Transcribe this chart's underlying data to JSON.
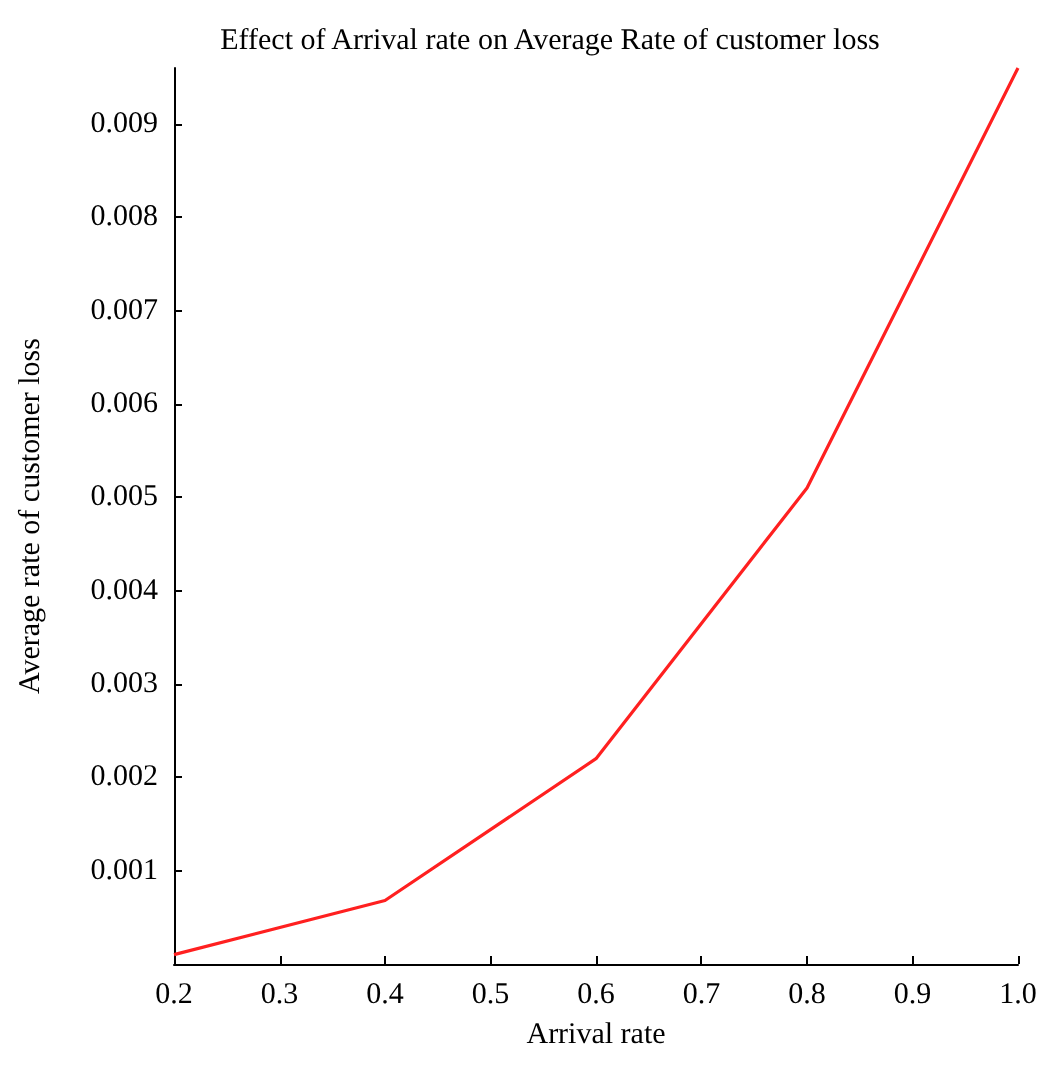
{
  "chart_data": {
    "type": "line",
    "title": "Effect of Arrival rate on Average Rate of customer loss",
    "xlabel": "Arrival rate",
    "ylabel": "Average rate of customer loss",
    "x": [
      0.2,
      0.4,
      0.6,
      0.8,
      1.0
    ],
    "series": [
      {
        "color": "#ff2020",
        "values": [
          0.0001,
          0.00068,
          0.0022,
          0.0051,
          0.0096
        ]
      }
    ],
    "xlim": [
      0.2,
      1.0
    ],
    "xticks": [
      {
        "value": 0.2,
        "label": "0.2"
      },
      {
        "value": 0.3,
        "label": "0.3"
      },
      {
        "value": 0.4,
        "label": "0.4"
      },
      {
        "value": 0.5,
        "label": "0.5"
      },
      {
        "value": 0.6,
        "label": "0.6"
      },
      {
        "value": 0.7,
        "label": "0.7"
      },
      {
        "value": 0.8,
        "label": "0.8"
      },
      {
        "value": 0.9,
        "label": "0.9"
      },
      {
        "value": 1.0,
        "label": "1.0"
      }
    ],
    "ylim": [
      0,
      0.0096
    ],
    "yticks": [
      0.001,
      0.002,
      0.003,
      0.004,
      0.005,
      0.006,
      0.007,
      0.008,
      0.009
    ],
    "grid": false,
    "marker": "none",
    "line_style": "solid"
  }
}
